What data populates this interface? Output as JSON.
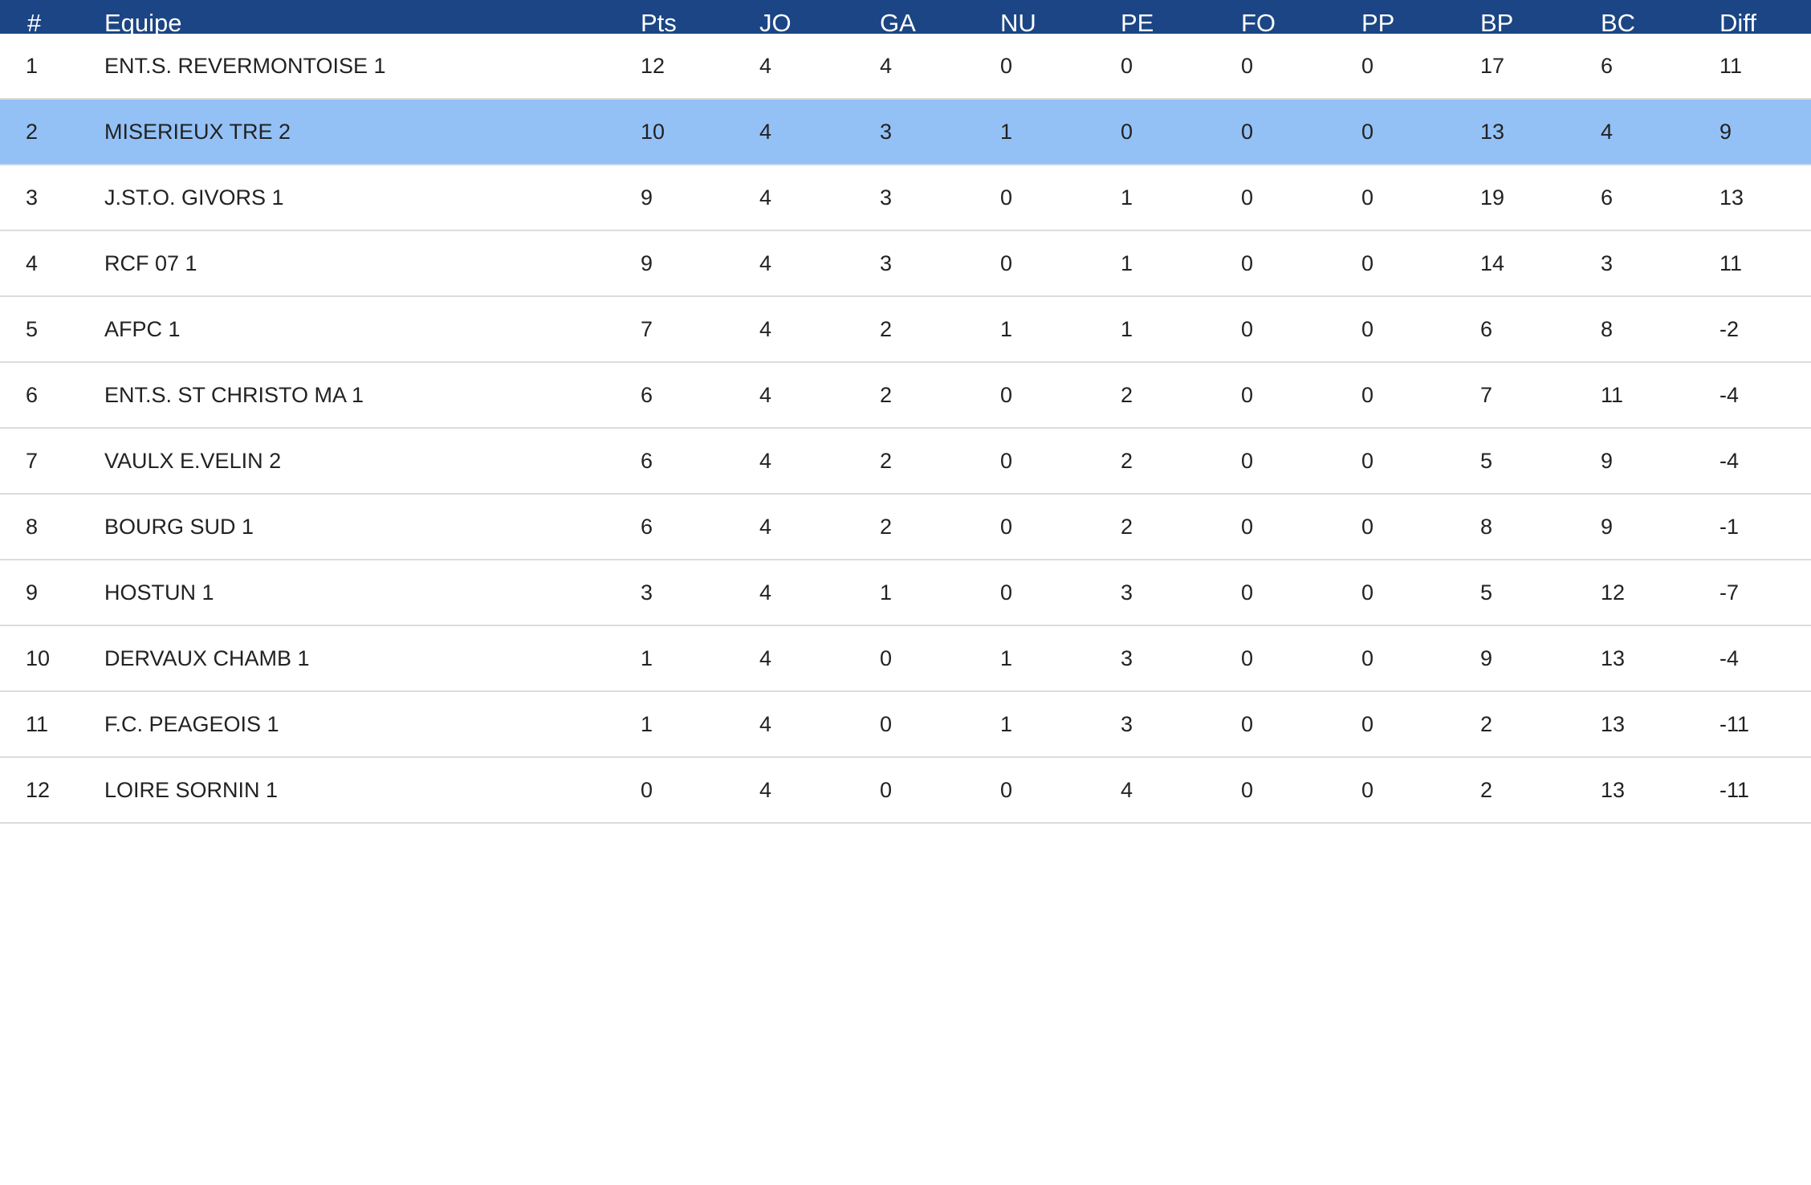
{
  "table": {
    "columns": [
      "#",
      "Equipe",
      "Pts",
      "JO",
      "GA",
      "NU",
      "PE",
      "FO",
      "PP",
      "BP",
      "BC",
      "Diff"
    ],
    "highlighted_row": 1,
    "colors": {
      "header_bg": "#1b4584",
      "header_text": "#ffffff",
      "highlight_bg": "#93c1f6",
      "row_border": "#dcdcdc"
    },
    "rows": [
      [
        "1",
        "ENT.S. REVERMONTOISE 1",
        "12",
        "4",
        "4",
        "0",
        "0",
        "0",
        "0",
        "17",
        "6",
        "11"
      ],
      [
        "2",
        "MISERIEUX TRE 2",
        "10",
        "4",
        "3",
        "1",
        "0",
        "0",
        "0",
        "13",
        "4",
        "9"
      ],
      [
        "3",
        "J.ST.O. GIVORS 1",
        "9",
        "4",
        "3",
        "0",
        "1",
        "0",
        "0",
        "19",
        "6",
        "13"
      ],
      [
        "4",
        "RCF 07 1",
        "9",
        "4",
        "3",
        "0",
        "1",
        "0",
        "0",
        "14",
        "3",
        "11"
      ],
      [
        "5",
        "AFPC 1",
        "7",
        "4",
        "2",
        "1",
        "1",
        "0",
        "0",
        "6",
        "8",
        "-2"
      ],
      [
        "6",
        "ENT.S. ST CHRISTO MA 1",
        "6",
        "4",
        "2",
        "0",
        "2",
        "0",
        "0",
        "7",
        "11",
        "-4"
      ],
      [
        "7",
        "VAULX E.VELIN 2",
        "6",
        "4",
        "2",
        "0",
        "2",
        "0",
        "0",
        "5",
        "9",
        "-4"
      ],
      [
        "8",
        "BOURG SUD 1",
        "6",
        "4",
        "2",
        "0",
        "2",
        "0",
        "0",
        "8",
        "9",
        "-1"
      ],
      [
        "9",
        "HOSTUN 1",
        "3",
        "4",
        "1",
        "0",
        "3",
        "0",
        "0",
        "5",
        "12",
        "-7"
      ],
      [
        "10",
        "DERVAUX CHAMB 1",
        "1",
        "4",
        "0",
        "1",
        "3",
        "0",
        "0",
        "9",
        "13",
        "-4"
      ],
      [
        "11",
        "F.C. PEAGEOIS 1",
        "1",
        "4",
        "0",
        "1",
        "3",
        "0",
        "0",
        "2",
        "13",
        "-11"
      ],
      [
        "12",
        "LOIRE SORNIN 1",
        "0",
        "4",
        "0",
        "0",
        "4",
        "0",
        "0",
        "2",
        "13",
        "-11"
      ]
    ]
  }
}
